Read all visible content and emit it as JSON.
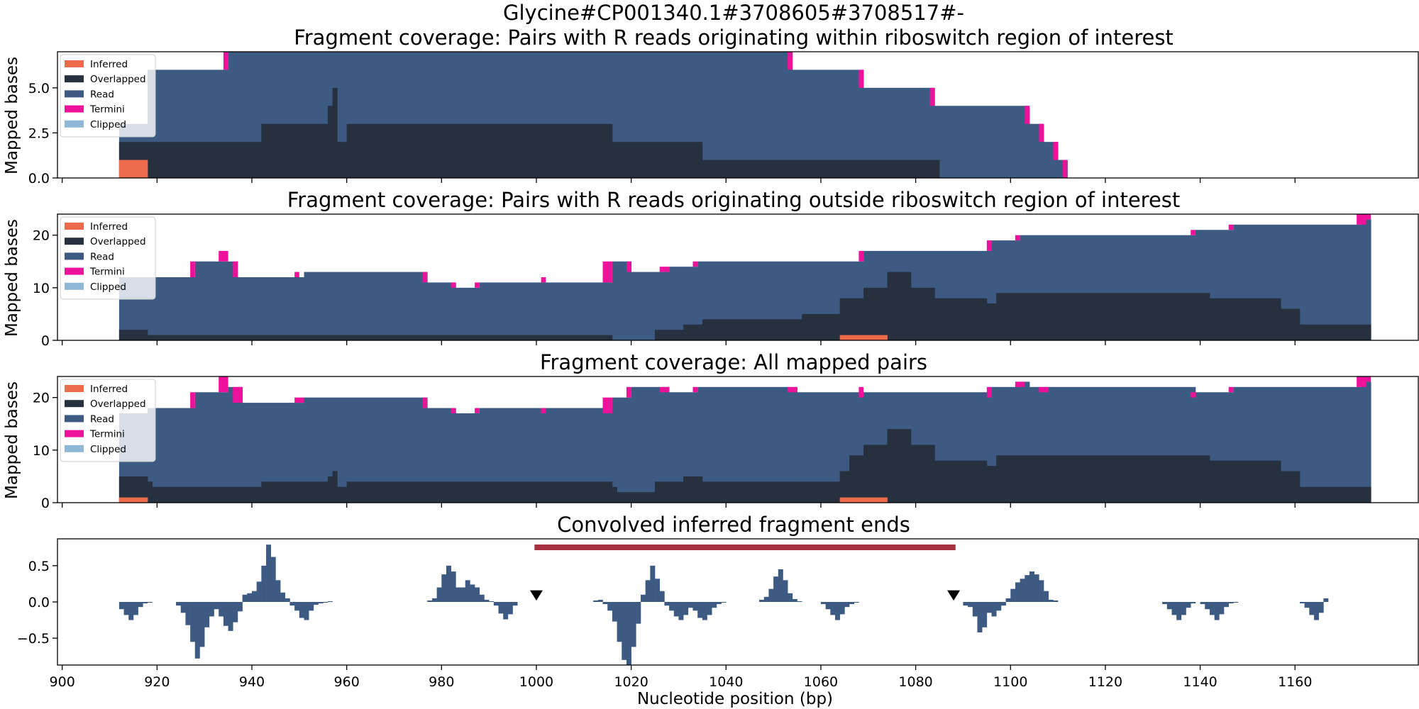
{
  "figure": {
    "suptitle": "Glycine#CP001340.1#3708605#3708517#-",
    "xlabel": "Nucleotide position (bp)",
    "x_ticks": [
      900,
      920,
      940,
      960,
      980,
      1000,
      1020,
      1040,
      1060,
      1080,
      1100,
      1120,
      1140,
      1160
    ],
    "xlim": [
      899,
      1186
    ]
  },
  "colors": {
    "inferred": "#ee6a4d",
    "overlapped": "#27303f",
    "read": "#3d5b82",
    "termini": "#ee1199",
    "clipped": "#8fb7d6",
    "region_bar": "#a8313f",
    "marker": "#000000"
  },
  "legend": {
    "position": "upper left",
    "entries": [
      "Inferred",
      "Overlapped",
      "Read",
      "Termini",
      "Clipped"
    ]
  },
  "chart_data": [
    {
      "type": "area",
      "title": "Fragment coverage: Pairs with R reads originating within riboswitch region of interest",
      "ylabel": "Mapped bases",
      "ylim": [
        0,
        7
      ],
      "y_ticks": [
        0.0,
        2.5,
        5.0
      ],
      "y_tick_labels": [
        "0.0",
        "2.5",
        "5.0"
      ],
      "legend": true,
      "total": [
        [
          912,
          3
        ],
        [
          918,
          6
        ],
        [
          935,
          7
        ],
        [
          1054,
          6
        ],
        [
          1069,
          5
        ],
        [
          1084,
          4
        ],
        [
          1104,
          3
        ],
        [
          1107,
          2
        ],
        [
          1110,
          1
        ],
        [
          1112,
          0
        ]
      ],
      "overlapped": [
        [
          912,
          2
        ],
        [
          918,
          2
        ],
        [
          936,
          2
        ],
        [
          942,
          3
        ],
        [
          956,
          4
        ],
        [
          957,
          5
        ],
        [
          958,
          2
        ],
        [
          960,
          3
        ],
        [
          1016,
          2
        ],
        [
          1035,
          1
        ],
        [
          1085,
          0
        ]
      ],
      "inferred": [
        [
          912,
          1
        ],
        [
          918,
          0
        ]
      ],
      "termini": [
        [
          934,
          935,
          6,
          7
        ],
        [
          1053,
          1054,
          6,
          7
        ],
        [
          1068,
          1069,
          5,
          6
        ],
        [
          1083,
          1084,
          4,
          5
        ],
        [
          1103,
          1104,
          3,
          4
        ],
        [
          1106,
          1107,
          2,
          3
        ],
        [
          1109,
          1110,
          1,
          2
        ],
        [
          1111,
          1112,
          0,
          1
        ]
      ]
    },
    {
      "type": "area",
      "title": "Fragment coverage: Pairs with R reads originating outside riboswitch region of interest",
      "ylabel": "Mapped bases",
      "ylim": [
        0,
        24
      ],
      "y_ticks": [
        0,
        10,
        20
      ],
      "y_tick_labels": [
        "0",
        "10",
        "20"
      ],
      "legend": true,
      "total": [
        [
          912,
          12
        ],
        [
          928,
          15
        ],
        [
          937,
          12
        ],
        [
          951,
          13
        ],
        [
          977,
          11
        ],
        [
          983,
          10
        ],
        [
          988,
          11
        ],
        [
          1002,
          11
        ],
        [
          1016,
          15
        ],
        [
          1020,
          13
        ],
        [
          1028,
          14
        ],
        [
          1034,
          15
        ],
        [
          1069,
          17
        ],
        [
          1096,
          19
        ],
        [
          1102,
          20
        ],
        [
          1139,
          21
        ],
        [
          1147,
          22
        ],
        [
          1174,
          23
        ],
        [
          1176,
          0
        ]
      ],
      "overlapped": [
        [
          912,
          2
        ],
        [
          918,
          1
        ],
        [
          1016,
          0
        ],
        [
          1025,
          2
        ],
        [
          1031,
          3
        ],
        [
          1035,
          4
        ],
        [
          1056,
          5
        ],
        [
          1064,
          8
        ],
        [
          1069,
          10
        ],
        [
          1074,
          13
        ],
        [
          1079,
          10
        ],
        [
          1084,
          8
        ],
        [
          1095,
          7
        ],
        [
          1097,
          9
        ],
        [
          1142,
          8
        ],
        [
          1157,
          6
        ],
        [
          1161,
          3
        ],
        [
          1176,
          0
        ]
      ],
      "inferred": [
        [
          1064,
          1
        ],
        [
          1074,
          0
        ]
      ],
      "termini": [
        [
          927,
          928,
          12,
          15
        ],
        [
          933,
          935,
          15,
          17
        ],
        [
          936,
          937,
          12,
          15
        ],
        [
          949,
          950,
          12,
          13
        ],
        [
          976,
          977,
          11,
          13
        ],
        [
          982,
          983,
          10,
          11
        ],
        [
          987,
          988,
          10,
          11
        ],
        [
          1001,
          1002,
          11,
          12
        ],
        [
          1014,
          1016,
          11,
          15
        ],
        [
          1019,
          1020,
          13,
          15
        ],
        [
          1026,
          1028,
          13,
          14
        ],
        [
          1033,
          1034,
          14,
          15
        ],
        [
          1068,
          1069,
          15,
          17
        ],
        [
          1095,
          1096,
          17,
          19
        ],
        [
          1101,
          1102,
          19,
          20
        ],
        [
          1138,
          1139,
          20,
          21
        ],
        [
          1146,
          1147,
          21,
          22
        ],
        [
          1173,
          1175,
          22,
          24
        ],
        [
          1175,
          1176,
          23,
          24
        ]
      ]
    },
    {
      "type": "area",
      "title": "Fragment coverage: All mapped pairs",
      "ylabel": "Mapped bases",
      "ylim": [
        0,
        24
      ],
      "y_ticks": [
        0,
        10,
        20
      ],
      "y_tick_labels": [
        "0",
        "10",
        "20"
      ],
      "legend": true,
      "total": [
        [
          912,
          17
        ],
        [
          918,
          18
        ],
        [
          928,
          21
        ],
        [
          935,
          22
        ],
        [
          938,
          19
        ],
        [
          951,
          20
        ],
        [
          977,
          18
        ],
        [
          983,
          17
        ],
        [
          988,
          18
        ],
        [
          1002,
          18
        ],
        [
          1016,
          20
        ],
        [
          1020,
          22
        ],
        [
          1028,
          21
        ],
        [
          1034,
          22
        ],
        [
          1055,
          21
        ],
        [
          1069,
          21
        ],
        [
          1096,
          22
        ],
        [
          1101,
          23
        ],
        [
          1104,
          22
        ],
        [
          1139,
          21
        ],
        [
          1147,
          22
        ],
        [
          1174,
          23
        ],
        [
          1176,
          0
        ]
      ],
      "overlapped": [
        [
          912,
          5
        ],
        [
          918,
          4
        ],
        [
          919,
          3
        ],
        [
          942,
          4
        ],
        [
          956,
          5
        ],
        [
          957,
          6
        ],
        [
          958,
          3
        ],
        [
          960,
          4
        ],
        [
          1016,
          3
        ],
        [
          1017,
          2
        ],
        [
          1025,
          4
        ],
        [
          1031,
          5
        ],
        [
          1035,
          4
        ],
        [
          1064,
          6
        ],
        [
          1066,
          9
        ],
        [
          1069,
          11
        ],
        [
          1074,
          14
        ],
        [
          1079,
          11
        ],
        [
          1084,
          8
        ],
        [
          1095,
          7
        ],
        [
          1097,
          9
        ],
        [
          1142,
          8
        ],
        [
          1157,
          6
        ],
        [
          1161,
          3
        ],
        [
          1176,
          0
        ]
      ],
      "inferred": [
        [
          912,
          1
        ],
        [
          918,
          0
        ],
        [
          1064,
          1
        ],
        [
          1074,
          0
        ]
      ],
      "termini": [
        [
          927,
          928,
          18,
          21
        ],
        [
          933,
          935,
          21,
          24
        ],
        [
          936,
          938,
          19,
          22
        ],
        [
          949,
          951,
          19,
          20
        ],
        [
          976,
          977,
          18,
          20
        ],
        [
          982,
          983,
          17,
          18
        ],
        [
          987,
          988,
          17,
          18
        ],
        [
          1001,
          1002,
          17,
          18
        ],
        [
          1014,
          1016,
          17,
          20
        ],
        [
          1019,
          1020,
          20,
          22
        ],
        [
          1026,
          1028,
          21,
          22
        ],
        [
          1033,
          1034,
          21,
          22
        ],
        [
          1053,
          1055,
          21,
          22
        ],
        [
          1068,
          1069,
          20,
          22
        ],
        [
          1095,
          1096,
          20,
          22
        ],
        [
          1101,
          1103,
          22,
          23
        ],
        [
          1106,
          1108,
          21,
          22
        ],
        [
          1138,
          1139,
          20,
          21
        ],
        [
          1146,
          1147,
          21,
          22
        ],
        [
          1173,
          1175,
          22,
          24
        ],
        [
          1175,
          1176,
          23,
          24
        ]
      ]
    },
    {
      "type": "bar",
      "title": "Convolved inferred fragment ends",
      "ylabel": "",
      "ylim": [
        -0.87,
        0.87
      ],
      "y_ticks": [
        -0.5,
        0.0,
        0.5
      ],
      "y_tick_labels": [
        "−0.5",
        "0.0",
        "0.5"
      ],
      "legend": false,
      "bar_width": 1,
      "values": [
        [
          912,
          -0.1
        ],
        [
          913,
          -0.18
        ],
        [
          914,
          -0.25
        ],
        [
          915,
          -0.18
        ],
        [
          916,
          -0.07
        ],
        [
          917,
          -0.02
        ],
        [
          918,
          -0.01
        ],
        [
          924,
          -0.05
        ],
        [
          925,
          -0.15
        ],
        [
          926,
          -0.32
        ],
        [
          927,
          -0.55
        ],
        [
          928,
          -0.78
        ],
        [
          929,
          -0.62
        ],
        [
          930,
          -0.35
        ],
        [
          931,
          -0.2
        ],
        [
          932,
          -0.1
        ],
        [
          933,
          -0.2
        ],
        [
          934,
          -0.33
        ],
        [
          935,
          -0.4
        ],
        [
          936,
          -0.28
        ],
        [
          937,
          -0.13
        ],
        [
          938,
          0.1
        ],
        [
          939,
          0.12
        ],
        [
          940,
          0.15
        ],
        [
          941,
          0.28
        ],
        [
          942,
          0.5
        ],
        [
          943,
          0.79
        ],
        [
          944,
          0.62
        ],
        [
          945,
          0.3
        ],
        [
          946,
          0.13
        ],
        [
          947,
          0.05
        ],
        [
          948,
          -0.05
        ],
        [
          949,
          -0.12
        ],
        [
          950,
          -0.22
        ],
        [
          951,
          -0.25
        ],
        [
          952,
          -0.12
        ],
        [
          953,
          -0.04
        ],
        [
          954,
          -0.02
        ],
        [
          955,
          -0.01
        ],
        [
          956,
          0.01
        ],
        [
          977,
          0.02
        ],
        [
          978,
          0.05
        ],
        [
          979,
          0.2
        ],
        [
          980,
          0.38
        ],
        [
          981,
          0.5
        ],
        [
          982,
          0.42
        ],
        [
          983,
          0.2
        ],
        [
          984,
          0.2
        ],
        [
          985,
          0.3
        ],
        [
          986,
          0.24
        ],
        [
          987,
          0.2
        ],
        [
          988,
          0.1
        ],
        [
          989,
          0.03
        ],
        [
          990,
          0.01
        ],
        [
          991,
          -0.05
        ],
        [
          992,
          -0.16
        ],
        [
          993,
          -0.24
        ],
        [
          994,
          -0.17
        ],
        [
          995,
          -0.05
        ],
        [
          1012,
          0.02
        ],
        [
          1013,
          0.03
        ],
        [
          1014,
          -0.03
        ],
        [
          1015,
          -0.12
        ],
        [
          1016,
          -0.27
        ],
        [
          1017,
          -0.55
        ],
        [
          1018,
          -0.8
        ],
        [
          1019,
          -0.87
        ],
        [
          1020,
          -0.62
        ],
        [
          1021,
          -0.3
        ],
        [
          1022,
          0.1
        ],
        [
          1023,
          0.3
        ],
        [
          1024,
          0.5
        ],
        [
          1025,
          0.32
        ],
        [
          1026,
          0.15
        ],
        [
          1027,
          -0.05
        ],
        [
          1028,
          -0.12
        ],
        [
          1029,
          -0.2
        ],
        [
          1030,
          -0.25
        ],
        [
          1031,
          -0.18
        ],
        [
          1032,
          -0.08
        ],
        [
          1033,
          -0.12
        ],
        [
          1034,
          -0.22
        ],
        [
          1035,
          -0.25
        ],
        [
          1036,
          -0.18
        ],
        [
          1037,
          -0.08
        ],
        [
          1038,
          -0.03
        ],
        [
          1039,
          -0.01
        ],
        [
          1047,
          0.03
        ],
        [
          1048,
          0.07
        ],
        [
          1049,
          0.18
        ],
        [
          1050,
          0.35
        ],
        [
          1051,
          0.45
        ],
        [
          1052,
          0.3
        ],
        [
          1053,
          0.12
        ],
        [
          1054,
          0.04
        ],
        [
          1055,
          0.01
        ],
        [
          1060,
          -0.03
        ],
        [
          1061,
          -0.1
        ],
        [
          1062,
          -0.18
        ],
        [
          1063,
          -0.25
        ],
        [
          1064,
          -0.17
        ],
        [
          1065,
          -0.07
        ],
        [
          1066,
          -0.03
        ],
        [
          1067,
          -0.01
        ],
        [
          1090,
          -0.05
        ],
        [
          1091,
          -0.07
        ],
        [
          1092,
          -0.2
        ],
        [
          1093,
          -0.42
        ],
        [
          1094,
          -0.35
        ],
        [
          1095,
          -0.15
        ],
        [
          1096,
          -0.2
        ],
        [
          1097,
          -0.12
        ],
        [
          1098,
          -0.05
        ],
        [
          1099,
          0.05
        ],
        [
          1100,
          0.18
        ],
        [
          1101,
          0.27
        ],
        [
          1102,
          0.32
        ],
        [
          1103,
          0.37
        ],
        [
          1104,
          0.42
        ],
        [
          1105,
          0.38
        ],
        [
          1106,
          0.3
        ],
        [
          1107,
          0.15
        ],
        [
          1108,
          0.03
        ],
        [
          1109,
          0.02
        ],
        [
          1132,
          -0.03
        ],
        [
          1133,
          -0.1
        ],
        [
          1134,
          -0.18
        ],
        [
          1135,
          -0.25
        ],
        [
          1136,
          -0.18
        ],
        [
          1137,
          -0.08
        ],
        [
          1138,
          -0.02
        ],
        [
          1140,
          -0.03
        ],
        [
          1141,
          -0.1
        ],
        [
          1142,
          -0.18
        ],
        [
          1143,
          -0.25
        ],
        [
          1144,
          -0.17
        ],
        [
          1145,
          -0.07
        ],
        [
          1146,
          -0.02
        ],
        [
          1147,
          -0.01
        ],
        [
          1161,
          -0.02
        ],
        [
          1162,
          -0.08
        ],
        [
          1163,
          -0.18
        ],
        [
          1164,
          -0.25
        ],
        [
          1165,
          -0.15
        ],
        [
          1166,
          0.05
        ]
      ],
      "region_bar": [
        999.6,
        1088.4
      ],
      "markers": [
        1000,
        1088
      ]
    }
  ]
}
